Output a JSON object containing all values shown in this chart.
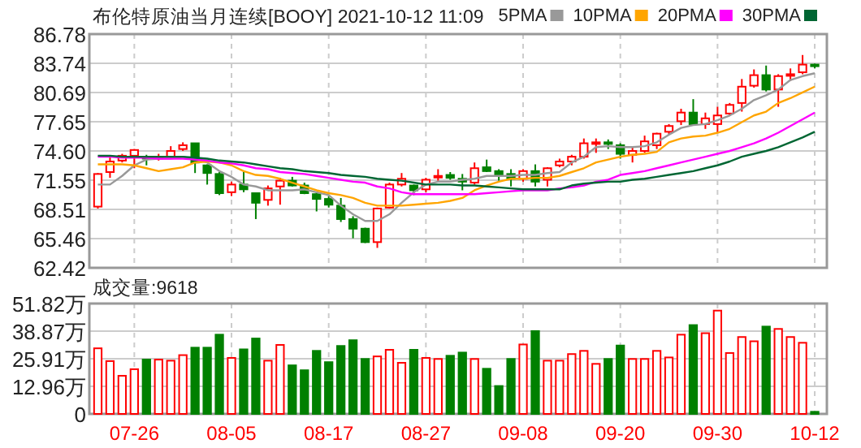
{
  "chart_data": [
    {
      "type": "candlestick",
      "title": "布伦特原油当月连续[BOOY] 2021-10-12 11:09",
      "categories": [
        null,
        null,
        null,
        null,
        null,
        null,
        null,
        null,
        null,
        null,
        null,
        null,
        null,
        null,
        null,
        null,
        null,
        null,
        null,
        null,
        null,
        null,
        null,
        null,
        null,
        null,
        null,
        null,
        null,
        null,
        null,
        null,
        null,
        null,
        null,
        null,
        null,
        null,
        null,
        null,
        null,
        null,
        null,
        null,
        null,
        null,
        null,
        null,
        null,
        null,
        null,
        null,
        null,
        null,
        null,
        null,
        null,
        null,
        null,
        null
      ],
      "ohlc": [
        [
          68.8,
          72.3,
          68.6,
          72.2
        ],
        [
          72.4,
          74.0,
          71.8,
          73.5
        ],
        [
          73.6,
          74.3,
          73.4,
          74.1
        ],
        [
          74.1,
          74.8,
          72.8,
          74.7
        ],
        [
          74.0,
          74.2,
          73.1,
          73.8
        ],
        [
          73.8,
          74.3,
          73.6,
          74.0
        ],
        [
          74.0,
          75.1,
          73.8,
          74.6
        ],
        [
          74.8,
          75.5,
          74.6,
          75.2
        ],
        [
          75.4,
          75.4,
          72.3,
          73.4
        ],
        [
          73.1,
          73.2,
          71.1,
          72.3
        ],
        [
          72.2,
          72.4,
          70.0,
          70.2
        ],
        [
          70.3,
          71.4,
          69.9,
          71.1
        ],
        [
          71.1,
          72.4,
          70.3,
          70.6
        ],
        [
          70.2,
          70.2,
          67.5,
          69.2
        ],
        [
          69.5,
          71.0,
          68.9,
          70.7
        ],
        [
          70.9,
          71.8,
          69.0,
          71.5
        ],
        [
          71.5,
          71.9,
          70.9,
          71.0
        ],
        [
          71.0,
          71.3,
          70.1,
          70.2
        ],
        [
          70.1,
          70.3,
          68.3,
          69.6
        ],
        [
          69.6,
          69.9,
          68.7,
          69.0
        ],
        [
          68.9,
          69.7,
          67.2,
          67.5
        ],
        [
          67.5,
          67.8,
          65.5,
          66.5
        ],
        [
          66.5,
          66.6,
          65.0,
          65.1
        ],
        [
          65.1,
          68.7,
          64.5,
          68.6
        ],
        [
          68.7,
          71.3,
          68.6,
          71.1
        ],
        [
          71.1,
          72.3,
          70.9,
          71.7
        ],
        [
          71.0,
          71.1,
          70.0,
          70.5
        ],
        [
          70.6,
          71.8,
          70.3,
          71.6
        ],
        [
          71.9,
          72.7,
          71.5,
          72.0
        ],
        [
          72.1,
          72.4,
          71.6,
          71.8
        ],
        [
          71.7,
          72.2,
          70.5,
          71.4
        ],
        [
          71.3,
          73.4,
          71.1,
          72.8
        ],
        [
          72.9,
          73.7,
          72.4,
          72.5
        ],
        [
          72.5,
          72.7,
          71.5,
          72.0
        ],
        [
          72.2,
          72.7,
          70.9,
          71.7
        ],
        [
          71.7,
          72.7,
          71.4,
          72.5
        ],
        [
          72.5,
          73.2,
          70.9,
          71.4
        ],
        [
          71.6,
          72.9,
          70.9,
          72.8
        ],
        [
          73.1,
          73.8,
          72.9,
          73.5
        ],
        [
          73.5,
          74.2,
          73.1,
          74.0
        ],
        [
          74.0,
          75.9,
          73.8,
          75.4
        ],
        [
          75.4,
          75.9,
          74.4,
          75.5
        ],
        [
          75.5,
          75.8,
          74.8,
          75.4
        ],
        [
          75.2,
          75.4,
          73.8,
          74.3
        ],
        [
          74.2,
          75.1,
          73.4,
          74.6
        ],
        [
          74.6,
          76.2,
          74.4,
          75.6
        ],
        [
          75.2,
          76.5,
          74.8,
          76.4
        ],
        [
          76.6,
          77.4,
          76.3,
          77.2
        ],
        [
          77.7,
          79.0,
          77.3,
          78.6
        ],
        [
          78.6,
          80.0,
          77.3,
          77.4
        ],
        [
          77.4,
          78.6,
          76.9,
          78.0
        ],
        [
          77.4,
          79.2,
          76.5,
          78.3
        ],
        [
          78.5,
          79.6,
          78.3,
          79.4
        ],
        [
          79.6,
          82.1,
          78.7,
          81.3
        ],
        [
          81.4,
          83.1,
          81.2,
          82.5
        ],
        [
          82.5,
          83.5,
          80.8,
          81.0
        ],
        [
          81.0,
          82.6,
          79.2,
          82.4
        ],
        [
          82.5,
          83.2,
          81.9,
          82.6
        ],
        [
          82.8,
          84.6,
          82.6,
          83.6
        ],
        [
          83.6,
          83.7,
          83.2,
          83.5
        ]
      ],
      "colors": [
        "#ff0000",
        "#ff0000",
        "#ff0000",
        "#ff0000",
        "#008000",
        "#ff0000",
        "#ff0000",
        "#ff0000",
        "#008000",
        "#008000",
        "#008000",
        "#ff0000",
        "#008000",
        "#008000",
        "#ff0000",
        "#ff0000",
        "#008000",
        "#008000",
        "#008000",
        "#008000",
        "#008000",
        "#008000",
        "#008000",
        "#ff0000",
        "#ff0000",
        "#ff0000",
        "#008000",
        "#ff0000",
        "#ff0000",
        "#008000",
        "#008000",
        "#ff0000",
        "#008000",
        "#008000",
        "#008000",
        "#ff0000",
        "#008000",
        "#ff0000",
        "#ff0000",
        "#ff0000",
        "#ff0000",
        "#ff0000",
        "#008000",
        "#008000",
        "#ff0000",
        "#ff0000",
        "#ff0000",
        "#ff0000",
        "#ff0000",
        "#008000",
        "#ff0000",
        "#ff0000",
        "#ff0000",
        "#ff0000",
        "#ff0000",
        "#008000",
        "#ff0000",
        "#ff0000",
        "#ff0000",
        "#008000"
      ],
      "series": [
        {
          "type": "line",
          "name": "5PMA",
          "color": "#999999",
          "values": [
            71.1,
            71.1,
            72.0,
            73.1,
            73.7,
            73.8,
            73.8,
            74.0,
            73.7,
            73.4,
            72.5,
            71.9,
            71.1,
            70.9,
            70.5,
            70.5,
            70.5,
            70.6,
            70.3,
            70.0,
            68.9,
            68.0,
            67.3,
            67.3,
            68.0,
            69.2,
            70.3,
            71.1,
            71.4,
            71.4,
            71.6,
            71.7,
            72.0,
            72.0,
            72.0,
            72.1,
            72.1,
            72.3,
            72.4,
            73.4,
            74.0,
            75.0,
            75.1,
            75.0,
            75.0,
            75.1,
            75.5,
            76.3,
            77.0,
            77.3,
            77.4,
            77.8,
            78.3,
            79.0,
            79.9,
            80.4,
            81.0,
            82.0,
            82.4,
            82.7
          ]
        },
        {
          "type": "line",
          "name": "10PMA",
          "color": "#ffa500",
          "values": [
            73.2,
            73.2,
            73.2,
            73.1,
            72.8,
            72.5,
            72.7,
            72.9,
            73.4,
            73.5,
            73.4,
            73.1,
            72.5,
            72.1,
            72.0,
            71.7,
            71.3,
            70.9,
            70.5,
            70.2,
            70.0,
            69.7,
            69.2,
            68.9,
            68.9,
            68.9,
            69.0,
            69.1,
            69.2,
            69.4,
            69.7,
            70.5,
            71.0,
            71.4,
            71.7,
            71.7,
            71.8,
            71.8,
            72.0,
            72.4,
            72.8,
            73.4,
            73.7,
            74.0,
            74.2,
            74.3,
            74.5,
            75.5,
            75.9,
            76.1,
            76.2,
            76.5,
            76.9,
            77.6,
            78.3,
            78.7,
            79.6,
            80.1,
            80.7,
            81.3
          ]
        },
        {
          "type": "line",
          "name": "20PMA",
          "color": "#ff00ff",
          "values": [
            74.0,
            74.0,
            73.9,
            73.9,
            73.9,
            73.8,
            73.8,
            73.8,
            73.7,
            73.6,
            73.4,
            73.3,
            73.1,
            72.8,
            72.7,
            72.4,
            72.3,
            72.2,
            72.0,
            71.8,
            71.6,
            71.4,
            71.3,
            70.9,
            70.7,
            70.3,
            70.1,
            70.1,
            70.1,
            70.1,
            70.1,
            70.1,
            70.2,
            70.3,
            70.4,
            70.5,
            70.5,
            70.5,
            70.7,
            70.8,
            71.0,
            71.4,
            71.6,
            72.1,
            72.3,
            72.5,
            72.8,
            73.1,
            73.4,
            73.7,
            74.0,
            74.3,
            74.6,
            75.0,
            75.4,
            75.9,
            76.5,
            77.2,
            77.9,
            78.6
          ]
        },
        {
          "type": "line",
          "name": "30PMA",
          "color": "#006633",
          "values": [
            74.1,
            74.1,
            74.0,
            74.0,
            74.0,
            74.0,
            74.0,
            74.0,
            73.9,
            73.8,
            73.6,
            73.5,
            73.4,
            73.2,
            73.0,
            72.8,
            72.7,
            72.5,
            72.4,
            72.3,
            72.1,
            72.0,
            71.9,
            71.7,
            71.6,
            71.5,
            71.3,
            71.1,
            71.1,
            71.1,
            71.0,
            71.0,
            70.9,
            70.8,
            70.7,
            70.6,
            70.6,
            70.6,
            70.6,
            71.0,
            71.2,
            71.3,
            71.4,
            71.4,
            71.6,
            71.7,
            71.9,
            72.1,
            72.3,
            72.5,
            72.8,
            73.1,
            73.5,
            74.0,
            74.3,
            74.6,
            75.0,
            75.5,
            76.0,
            76.6
          ]
        }
      ],
      "ylim": [
        62.42,
        86.78
      ],
      "yticks": [
        {
          "value": 62.42,
          "label": "62.42"
        },
        {
          "value": 65.46,
          "label": "65.46"
        },
        {
          "value": 68.51,
          "label": "68.51"
        },
        {
          "value": 71.55,
          "label": "71.55"
        },
        {
          "value": 74.6,
          "label": "74.60"
        },
        {
          "value": 77.65,
          "label": "77.65"
        },
        {
          "value": 80.69,
          "label": "80.69"
        },
        {
          "value": 83.74,
          "label": "83.74"
        },
        {
          "value": 86.78,
          "label": "86.78"
        }
      ],
      "grid": true,
      "legend": "top right",
      "tick_labels": "y"
    },
    {
      "type": "bar",
      "title": "成交量:9618",
      "categories": [
        null,
        null,
        null,
        "07-26",
        null,
        null,
        null,
        null,
        null,
        null,
        null,
        "08-05",
        null,
        null,
        null,
        null,
        null,
        null,
        null,
        "08-17",
        null,
        null,
        null,
        null,
        null,
        null,
        null,
        "08-27",
        null,
        null,
        null,
        null,
        null,
        null,
        null,
        "09-08",
        null,
        null,
        null,
        null,
        null,
        null,
        null,
        "09-20",
        null,
        null,
        null,
        null,
        null,
        null,
        null,
        "09-30",
        null,
        null,
        null,
        null,
        null,
        null,
        null,
        "10-12"
      ],
      "values": [
        30.8,
        24.8,
        17.9,
        21.0,
        25.5,
        25.5,
        25.0,
        27.6,
        31.1,
        31.1,
        37.2,
        26.3,
        30.3,
        35.4,
        25.0,
        32.4,
        22.8,
        20.5,
        29.6,
        24.3,
        31.9,
        34.6,
        25.8,
        27.0,
        30.1,
        24.0,
        30.1,
        26.3,
        25.8,
        27.3,
        28.8,
        25.8,
        21.2,
        13.1,
        25.8,
        32.6,
        38.9,
        25.0,
        25.0,
        28.1,
        29.6,
        23.5,
        25.8,
        32.1,
        25.8,
        25.8,
        29.6,
        26.5,
        37.2,
        41.7,
        37.9,
        48.5,
        28.6,
        36.1,
        34.1,
        41.0,
        39.9,
        36.1,
        33.4,
        1.0
      ],
      "colors": [
        "#ff0000",
        "#ff0000",
        "#ff0000",
        "#ff0000",
        "#008000",
        "#ff0000",
        "#ff0000",
        "#ff0000",
        "#008000",
        "#008000",
        "#008000",
        "#ff0000",
        "#008000",
        "#008000",
        "#ff0000",
        "#ff0000",
        "#008000",
        "#008000",
        "#008000",
        "#008000",
        "#008000",
        "#008000",
        "#008000",
        "#ff0000",
        "#ff0000",
        "#ff0000",
        "#008000",
        "#ff0000",
        "#ff0000",
        "#008000",
        "#008000",
        "#ff0000",
        "#008000",
        "#008000",
        "#008000",
        "#ff0000",
        "#008000",
        "#ff0000",
        "#ff0000",
        "#ff0000",
        "#ff0000",
        "#ff0000",
        "#008000",
        "#008000",
        "#ff0000",
        "#ff0000",
        "#ff0000",
        "#ff0000",
        "#ff0000",
        "#008000",
        "#ff0000",
        "#ff0000",
        "#ff0000",
        "#ff0000",
        "#ff0000",
        "#008000",
        "#ff0000",
        "#ff0000",
        "#ff0000",
        "#008000"
      ],
      "ylim": [
        0,
        51.82
      ],
      "yticks": [
        0,
        {
          "value": 12.96,
          "label": "12.96万"
        },
        {
          "value": 25.91,
          "label": "25.91万"
        },
        {
          "value": 38.87,
          "label": "38.87万"
        },
        {
          "value": 51.82,
          "label": "51.82万"
        }
      ],
      "grid": true
    }
  ]
}
